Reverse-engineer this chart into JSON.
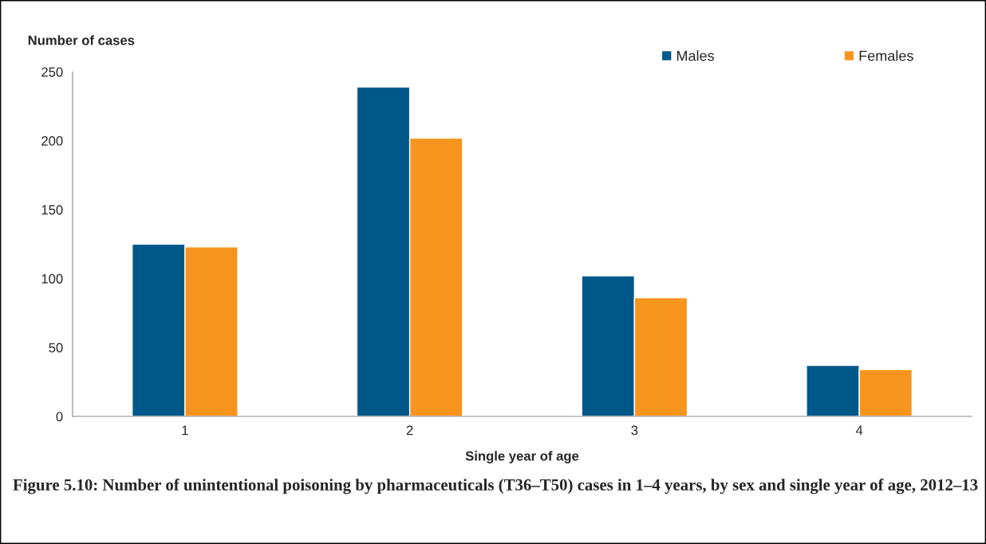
{
  "chart_data": {
    "type": "bar",
    "title": "Figure 5.10: Number of unintentional poisoning by pharmaceuticals (T36–T50) cases in 1–4 years, by sex and single year of age, 2012–13",
    "xlabel": "Single year of age",
    "ylabel": "Number of cases",
    "categories": [
      "1",
      "2",
      "3",
      "4"
    ],
    "series": [
      {
        "name": "Males",
        "color": "#00578a",
        "values": [
          125,
          239,
          102,
          37
        ]
      },
      {
        "name": "Females",
        "color": "#f7941d",
        "values": [
          123,
          202,
          86,
          34
        ]
      }
    ],
    "ylim": [
      0,
      250
    ],
    "yticks": [
      0,
      50,
      100,
      150,
      200,
      250
    ],
    "grid": false,
    "legend": "top right"
  }
}
